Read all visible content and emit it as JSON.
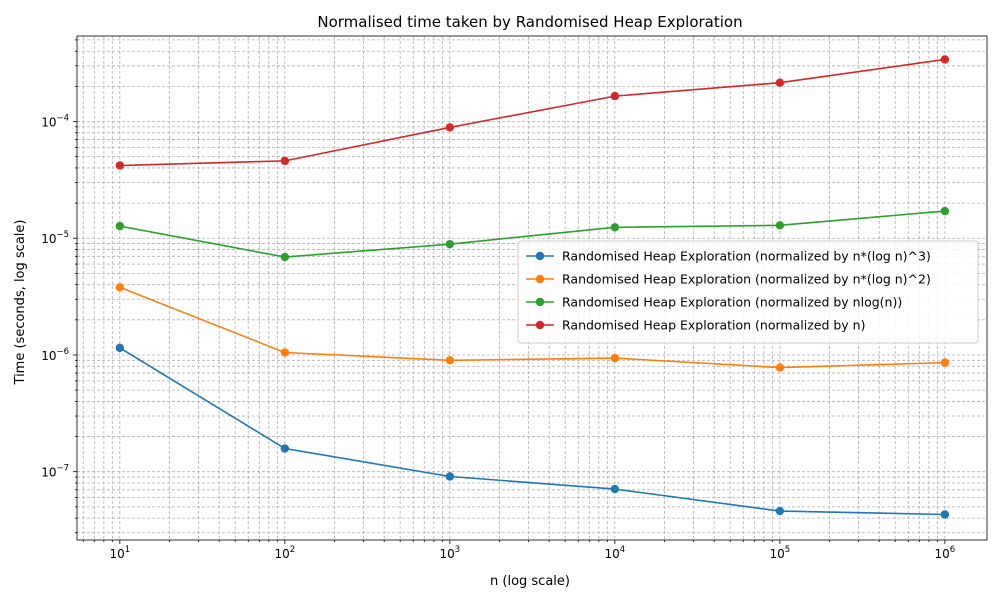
{
  "chart_data": {
    "type": "line",
    "title": "Normalised time taken by Randomised Heap Exploration",
    "xlabel": "n (log scale)",
    "ylabel": "Time (seconds, log scale)",
    "xscale": "log",
    "yscale": "log",
    "x": [
      10,
      100,
      1000,
      10000,
      100000,
      1000000
    ],
    "xlim": [
      5.5,
      1800000
    ],
    "ylim": [
      2.6e-08,
      0.00054
    ],
    "x_ticks": [
      {
        "value": 10,
        "base": "10",
        "exp": "1"
      },
      {
        "value": 100,
        "base": "10",
        "exp": "2"
      },
      {
        "value": 1000,
        "base": "10",
        "exp": "3"
      },
      {
        "value": 10000,
        "base": "10",
        "exp": "4"
      },
      {
        "value": 100000,
        "base": "10",
        "exp": "5"
      },
      {
        "value": 1000000,
        "base": "10",
        "exp": "6"
      }
    ],
    "y_ticks": [
      {
        "value": 1e-07,
        "base": "10",
        "exp": "−7"
      },
      {
        "value": 1e-06,
        "base": "10",
        "exp": "−6"
      },
      {
        "value": 1e-05,
        "base": "10",
        "exp": "−5"
      },
      {
        "value": 0.0001,
        "base": "10",
        "exp": "−4"
      }
    ],
    "grid": true,
    "grid_minor": true,
    "legend_position": "center-right",
    "series": [
      {
        "name": "Randomised Heap Exploration (normalized by n*(log n)^3)",
        "color": "#1f77b4",
        "values": [
          1.15e-06,
          1.58e-07,
          9.1e-08,
          7.1e-08,
          4.6e-08,
          4.3e-08
        ]
      },
      {
        "name": "Randomised Heap Exploration (normalized by n*(log n)^2)",
        "color": "#ff7f0e",
        "values": [
          3.8e-06,
          1.05e-06,
          9e-07,
          9.4e-07,
          7.8e-07,
          8.6e-07
        ]
      },
      {
        "name": "Randomised Heap Exploration (normalized by nlog(n))",
        "color": "#2ca02c",
        "values": [
          1.27e-05,
          6.9e-06,
          8.9e-06,
          1.24e-05,
          1.29e-05,
          1.71e-05
        ]
      },
      {
        "name": "Randomised Heap Exploration (normalized by n)",
        "color": "#d62728",
        "values": [
          4.2e-05,
          4.6e-05,
          8.9e-05,
          0.000165,
          0.000215,
          0.00034
        ]
      }
    ]
  }
}
